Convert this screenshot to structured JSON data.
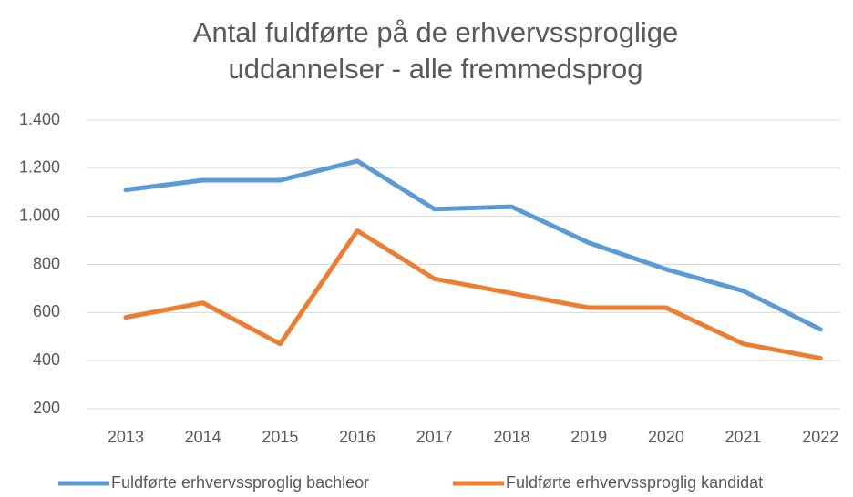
{
  "chart_data": {
    "type": "line",
    "title": [
      "Antal fuldførte på de erhvervssproglige",
      "uddannelser - alle fremmedsprog"
    ],
    "categories": [
      "2013",
      "2014",
      "2015",
      "2016",
      "2017",
      "2018",
      "2019",
      "2020",
      "2021",
      "2022"
    ],
    "series": [
      {
        "name": "Fuldførte erhvervssproglig bachleor",
        "color": "#5b9bd5",
        "values": [
          1110,
          1150,
          1150,
          1230,
          1030,
          1040,
          890,
          780,
          690,
          530
        ]
      },
      {
        "name": "Fuldførte erhvervssproglig kandidat",
        "color": "#ed7d31",
        "values": [
          580,
          640,
          470,
          940,
          740,
          680,
          620,
          620,
          470,
          410
        ]
      }
    ],
    "ylim": [
      200,
      1400
    ],
    "yticks": [
      200,
      400,
      600,
      800,
      {
        "value": 1000,
        "label": "1.000"
      },
      {
        "value": 1200,
        "label": "1.200"
      },
      {
        "value": 1400,
        "label": "1.400"
      }
    ],
    "grid": true,
    "legend": "bottom"
  }
}
